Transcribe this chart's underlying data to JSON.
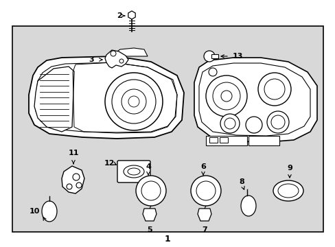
{
  "figsize": [
    4.89,
    3.6
  ],
  "dpi": 100,
  "bg_white": "#ffffff",
  "bg_gray": "#d8d8d8",
  "lc": "#000000"
}
